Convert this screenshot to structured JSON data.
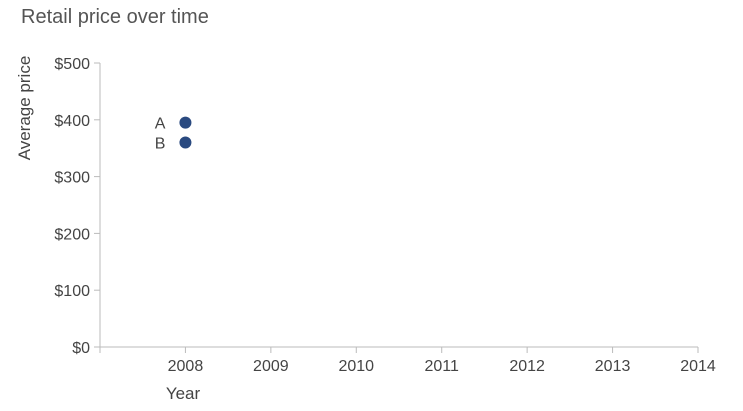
{
  "chart_data": {
    "type": "scatter",
    "title": "Retail price over time",
    "xlabel": "Year",
    "ylabel": "Average price",
    "xlim": [
      2007,
      2014
    ],
    "ylim": [
      0,
      500
    ],
    "x_ticks": [
      2008,
      2009,
      2010,
      2011,
      2012,
      2013,
      2014
    ],
    "y_ticks": [
      0,
      100,
      200,
      300,
      400,
      500
    ],
    "y_tick_labels": [
      "$0",
      "$100",
      "$200",
      "$300",
      "$400",
      "$500"
    ],
    "grid": false,
    "legend": "none",
    "points": [
      {
        "label": "A",
        "x": 2008,
        "y": 395
      },
      {
        "label": "B",
        "x": 2008,
        "y": 360
      }
    ],
    "colors": {
      "point": "#2a4a80",
      "axis": "#bbbbbb",
      "text": "#444444"
    }
  }
}
